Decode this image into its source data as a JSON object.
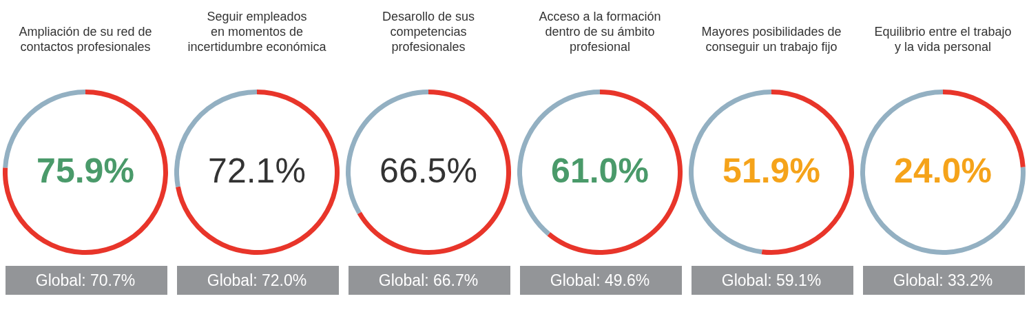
{
  "chart_data": [
    {
      "type": "donut",
      "title": "Ampliación de su red de\ncontactos profesionales",
      "categories": [
        null,
        null
      ],
      "values": [
        75.9,
        24.1
      ],
      "colors": [
        "#e8352a",
        "#93b0c2"
      ],
      "annotations": [
        "75.9%",
        "Global: 70.7%"
      ]
    },
    {
      "type": "donut",
      "title": "Seguir empleados\nen momentos de\nincertidumbre económica",
      "categories": [
        null,
        null
      ],
      "values": [
        72.1,
        27.9
      ],
      "colors": [
        "#e8352a",
        "#93b0c2"
      ],
      "annotations": [
        "72.1%",
        "Global: 72.0%"
      ]
    },
    {
      "type": "donut",
      "title": "Desarollo de sus\ncompetencias\nprofesionales",
      "categories": [
        null,
        null
      ],
      "values": [
        66.5,
        33.5
      ],
      "colors": [
        "#e8352a",
        "#93b0c2"
      ],
      "annotations": [
        "66.5%",
        "Global: 66.7%"
      ]
    },
    {
      "type": "donut",
      "title": "Acceso a la formación\ndentro de su ámbito\nprofesional",
      "categories": [
        null,
        null
      ],
      "values": [
        61.0,
        39.0
      ],
      "colors": [
        "#e8352a",
        "#93b0c2"
      ],
      "annotations": [
        "61.0%",
        "Global: 49.6%"
      ]
    },
    {
      "type": "donut",
      "title": "Mayores posibilidades de\nconseguir un trabajo fijo",
      "categories": [
        null,
        null
      ],
      "values": [
        51.9,
        48.1
      ],
      "colors": [
        "#e8352a",
        "#93b0c2"
      ],
      "annotations": [
        "51.9%",
        "Global: 59.1%"
      ]
    },
    {
      "type": "donut",
      "title": "Equilibrio entre el trabajo\ny la vida personal",
      "categories": [
        null,
        null
      ],
      "values": [
        24.0,
        76.0
      ],
      "colors": [
        "#e8352a",
        "#93b0c2"
      ],
      "annotations": [
        "24.0%",
        "Global: 33.2%"
      ]
    }
  ]
}
